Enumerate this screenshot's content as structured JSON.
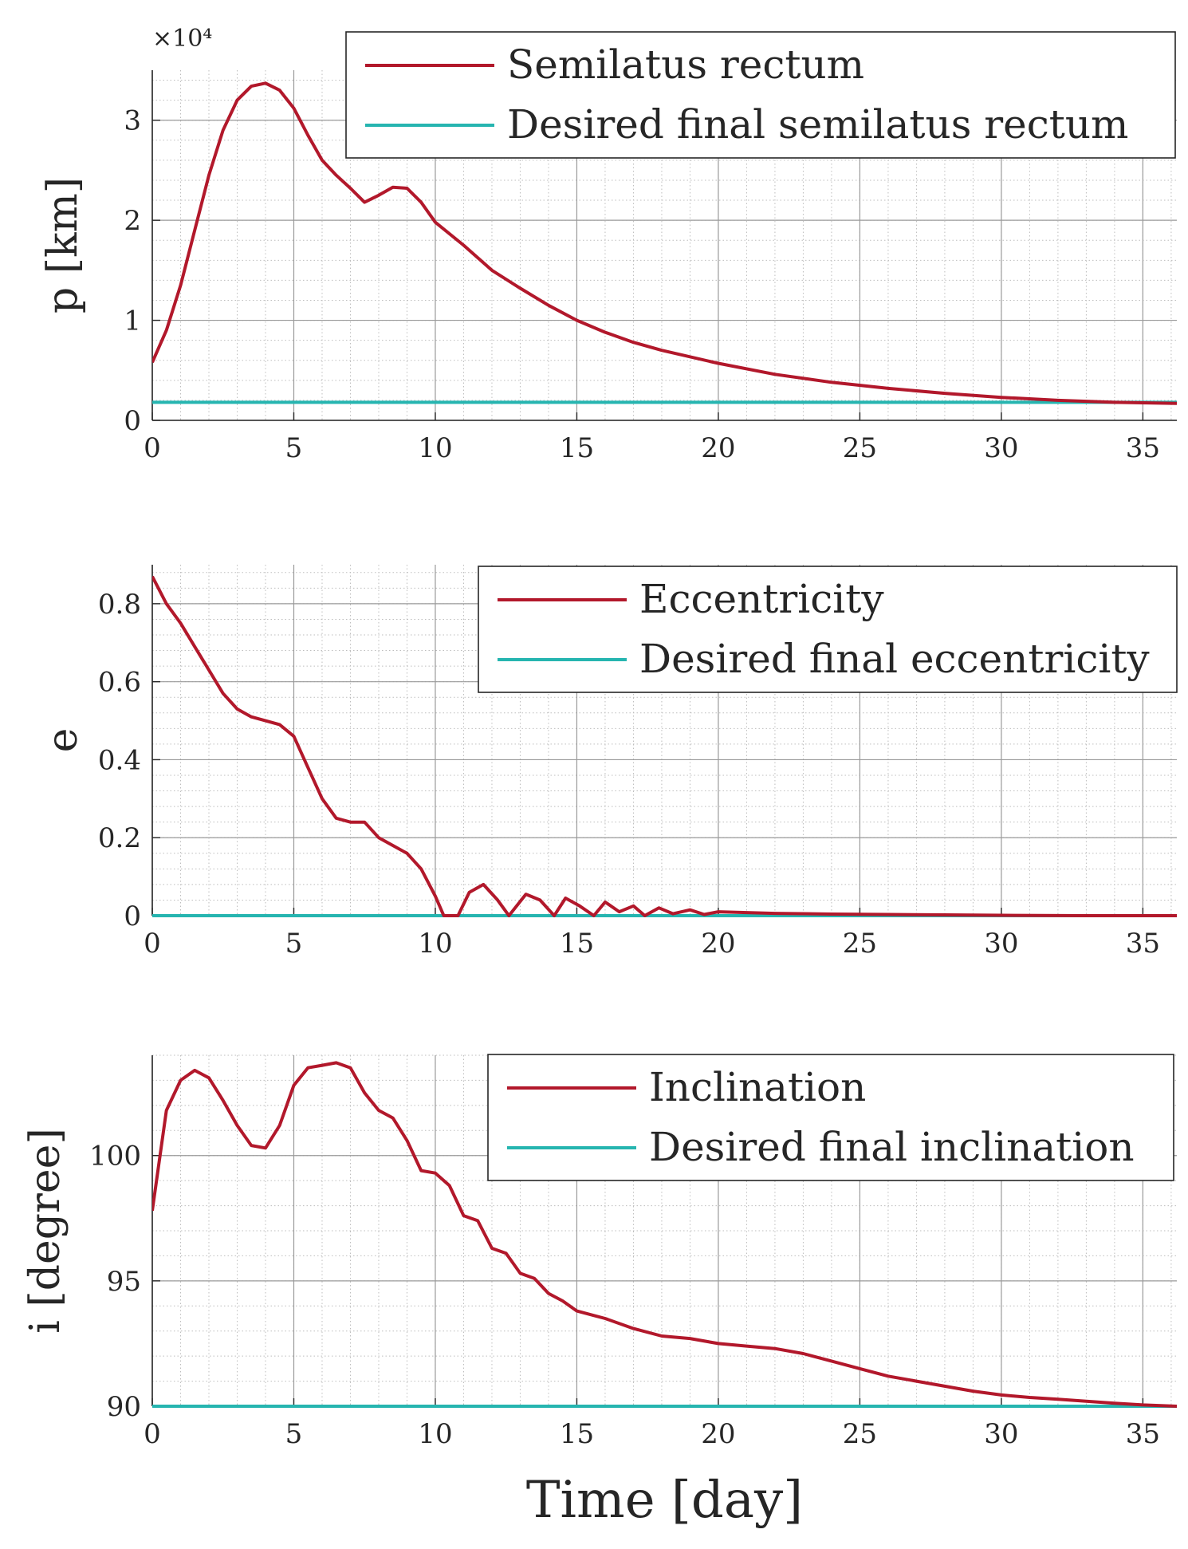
{
  "chart_data": [
    {
      "type": "line",
      "id": "semilatus",
      "ylabel": "p [km]",
      "y_exponent_label": "×10⁴",
      "xlim": [
        0,
        36.2
      ],
      "ylim": [
        0,
        35000
      ],
      "x_ticks": [
        0,
        5,
        10,
        15,
        20,
        25,
        30,
        35
      ],
      "x_tick_labels": [
        "0",
        "5",
        "10",
        "15",
        "20",
        "25",
        "30",
        "35"
      ],
      "y_ticks": [
        0,
        10000,
        20000,
        30000
      ],
      "y_tick_labels": [
        "0",
        "1",
        "2",
        "3"
      ],
      "grid": true,
      "legend_position": "top-right",
      "series": [
        {
          "name": "Semilatus rectum",
          "color": "#b2182b",
          "x": [
            0,
            0.5,
            1,
            1.5,
            2,
            2.5,
            3,
            3.5,
            4,
            4.5,
            5,
            5.5,
            6,
            6.5,
            7,
            7.5,
            8,
            8.5,
            9,
            9.5,
            10,
            11,
            12,
            13,
            14,
            15,
            16,
            17,
            18,
            20,
            22,
            24,
            26,
            28,
            30,
            32,
            34,
            36.2
          ],
          "y": [
            5800,
            9000,
            13500,
            19000,
            24500,
            29000,
            32000,
            33400,
            33700,
            33000,
            31200,
            28500,
            26000,
            24500,
            23200,
            21800,
            22500,
            23300,
            23200,
            21800,
            19800,
            17500,
            15000,
            13200,
            11500,
            10000,
            8800,
            7800,
            7000,
            5700,
            4600,
            3800,
            3200,
            2700,
            2300,
            2000,
            1800,
            1700
          ]
        },
        {
          "name": "Desired final semilatus rectum",
          "color": "#26b5b0",
          "x": [
            0,
            36.2
          ],
          "y": [
            1800,
            1800
          ]
        }
      ]
    },
    {
      "type": "line",
      "id": "eccentricity",
      "ylabel": "e",
      "xlim": [
        0,
        36.2
      ],
      "ylim": [
        0,
        0.9
      ],
      "x_ticks": [
        0,
        5,
        10,
        15,
        20,
        25,
        30,
        35
      ],
      "x_tick_labels": [
        "0",
        "5",
        "10",
        "15",
        "20",
        "25",
        "30",
        "35"
      ],
      "y_ticks": [
        0,
        0.2,
        0.4,
        0.6,
        0.8
      ],
      "y_tick_labels": [
        "0",
        "0.2",
        "0.4",
        "0.6",
        "0.8"
      ],
      "grid": true,
      "legend_position": "top-right",
      "series": [
        {
          "name": "Eccentricity",
          "color": "#b2182b",
          "x": [
            0,
            0.5,
            1,
            1.5,
            2,
            2.5,
            3,
            3.5,
            4,
            4.5,
            5,
            5.5,
            6,
            6.5,
            7,
            7.5,
            8,
            8.5,
            9,
            9.5,
            10,
            10.3,
            10.8,
            11.2,
            11.7,
            12.2,
            12.6,
            13.2,
            13.7,
            14.2,
            14.6,
            15.1,
            15.6,
            16,
            16.5,
            17,
            17.4,
            17.9,
            18.4,
            19,
            19.5,
            20,
            21,
            22,
            24,
            26,
            28,
            30,
            33,
            36.2
          ],
          "y": [
            0.87,
            0.8,
            0.75,
            0.69,
            0.63,
            0.57,
            0.53,
            0.51,
            0.5,
            0.49,
            0.46,
            0.38,
            0.3,
            0.25,
            0.24,
            0.24,
            0.2,
            0.18,
            0.16,
            0.12,
            0.05,
            0.0,
            0.0,
            0.06,
            0.08,
            0.04,
            0.0,
            0.055,
            0.04,
            0.0,
            0.045,
            0.025,
            0.0,
            0.035,
            0.01,
            0.025,
            0.0,
            0.02,
            0.005,
            0.015,
            0.003,
            0.01,
            0.008,
            0.006,
            0.004,
            0.003,
            0.002,
            0.001,
            0.0,
            0.0
          ]
        },
        {
          "name": "Desired final eccentricity",
          "color": "#26b5b0",
          "x": [
            0,
            36.2
          ],
          "y": [
            0.0,
            0.0
          ]
        }
      ]
    },
    {
      "type": "line",
      "id": "inclination",
      "ylabel": "i [degree]",
      "xlabel": "Time [day]",
      "xlim": [
        0,
        36.2
      ],
      "ylim": [
        90,
        104
      ],
      "x_ticks": [
        0,
        5,
        10,
        15,
        20,
        25,
        30,
        35
      ],
      "x_tick_labels": [
        "0",
        "5",
        "10",
        "15",
        "20",
        "25",
        "30",
        "35"
      ],
      "y_ticks": [
        90,
        95,
        100
      ],
      "y_tick_labels": [
        "90",
        "95",
        "100"
      ],
      "grid": true,
      "legend_position": "top-right",
      "series": [
        {
          "name": "Inclination",
          "color": "#b2182b",
          "x": [
            0,
            0.5,
            1,
            1.5,
            2,
            2.5,
            3,
            3.5,
            4,
            4.5,
            5,
            5.5,
            6,
            6.5,
            7,
            7.5,
            8,
            8.5,
            9,
            9.5,
            10,
            10.5,
            11,
            11.5,
            12,
            12.5,
            13,
            13.5,
            14,
            14.5,
            15,
            16,
            17,
            18,
            19,
            20,
            21,
            22,
            23,
            24,
            25,
            26,
            27,
            28,
            29,
            30,
            31,
            32,
            33,
            34,
            35,
            36.2
          ],
          "y": [
            97.8,
            101.8,
            103.0,
            103.4,
            103.1,
            102.2,
            101.2,
            100.4,
            100.3,
            101.2,
            102.8,
            103.5,
            103.6,
            103.7,
            103.5,
            102.5,
            101.8,
            101.5,
            100.6,
            99.4,
            99.3,
            98.8,
            97.6,
            97.4,
            96.3,
            96.1,
            95.3,
            95.1,
            94.5,
            94.2,
            93.8,
            93.5,
            93.1,
            92.8,
            92.7,
            92.5,
            92.4,
            92.3,
            92.1,
            91.8,
            91.5,
            91.2,
            91.0,
            90.8,
            90.6,
            90.45,
            90.35,
            90.28,
            90.2,
            90.12,
            90.05,
            90.0
          ]
        },
        {
          "name": "Desired final inclination",
          "color": "#26b5b0",
          "x": [
            0,
            36.2
          ],
          "y": [
            90.0,
            90.0
          ]
        }
      ]
    }
  ]
}
